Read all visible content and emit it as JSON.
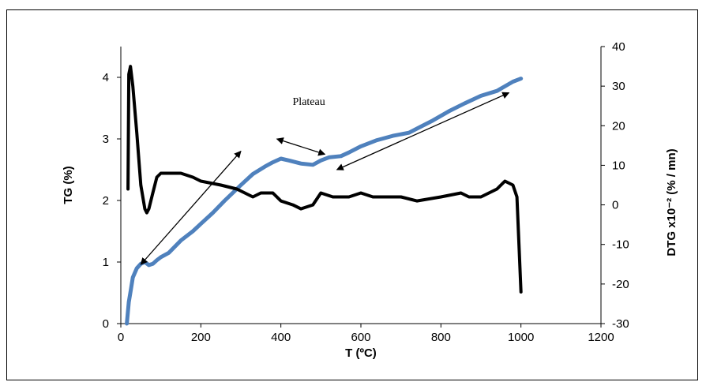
{
  "chart_data": {
    "type": "line",
    "title": "",
    "xlabel": "T (ºC)",
    "ylabel": "TG (%)",
    "y2label": "DTG x10⁻² (% / mn)",
    "xlim": [
      0,
      1200
    ],
    "ylim": [
      0,
      4.5
    ],
    "y2lim": [
      -30,
      40
    ],
    "x_ticks": [
      "0",
      "200",
      "400",
      "600",
      "800",
      "1000",
      "1200"
    ],
    "y_ticks": [
      "0",
      "1",
      "2",
      "3",
      "4"
    ],
    "y2_ticks": [
      "-30",
      "-20",
      "-10",
      "0",
      "10",
      "20",
      "30",
      "40"
    ],
    "grid": false,
    "annotation": "Plateau",
    "colors": {
      "tg": "#4f81bd",
      "dtg": "#000000"
    },
    "series": [
      {
        "axis": "left",
        "x": [
          15,
          20,
          25,
          30,
          40,
          50,
          60,
          70,
          80,
          90,
          100,
          120,
          150,
          180,
          200,
          230,
          260,
          300,
          330,
          360,
          380,
          400,
          420,
          450,
          480,
          500,
          520,
          550,
          570,
          600,
          640,
          680,
          720,
          750,
          780,
          820,
          860,
          900,
          940,
          980,
          1000
        ],
        "y": [
          0,
          0.35,
          0.55,
          0.75,
          0.9,
          0.97,
          1.0,
          0.95,
          0.97,
          1.03,
          1.08,
          1.15,
          1.35,
          1.5,
          1.62,
          1.8,
          2.0,
          2.25,
          2.43,
          2.55,
          2.62,
          2.68,
          2.65,
          2.6,
          2.58,
          2.65,
          2.7,
          2.72,
          2.78,
          2.88,
          2.98,
          3.05,
          3.1,
          3.2,
          3.3,
          3.45,
          3.58,
          3.7,
          3.78,
          3.93,
          3.98
        ]
      },
      {
        "axis": "right",
        "x": [
          18,
          20,
          24,
          30,
          40,
          50,
          60,
          65,
          70,
          80,
          90,
          100,
          120,
          150,
          180,
          200,
          250,
          290,
          330,
          350,
          380,
          400,
          430,
          450,
          480,
          500,
          530,
          570,
          600,
          630,
          660,
          700,
          740,
          800,
          850,
          870,
          900,
          940,
          960,
          980,
          990,
          1000
        ],
        "y": [
          4,
          33,
          35,
          30,
          18,
          5,
          -1,
          -2,
          -1,
          3,
          7,
          8,
          8,
          8,
          7,
          6,
          5,
          4,
          2,
          3,
          3,
          1,
          0,
          -1,
          0,
          3,
          2,
          2,
          3,
          2,
          2,
          2,
          1,
          2,
          3,
          2,
          2,
          4,
          6,
          5,
          2,
          -22
        ]
      }
    ]
  }
}
